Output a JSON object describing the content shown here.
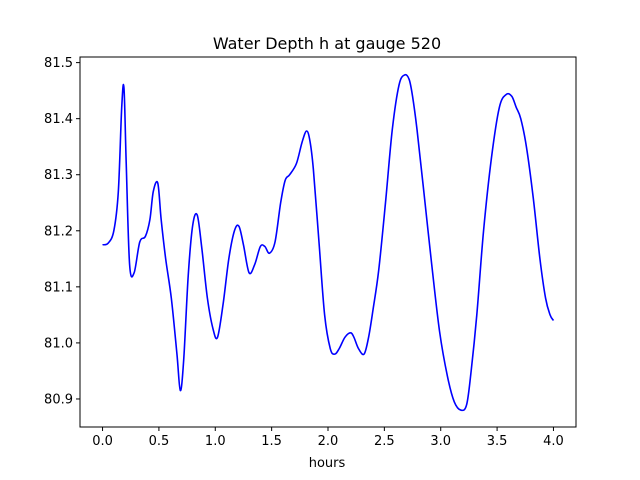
{
  "chart_data": {
    "type": "line",
    "title": "Water Depth h at gauge 520",
    "xlabel": "hours",
    "ylabel": "",
    "xlim": [
      -0.2,
      4.2
    ],
    "ylim": [
      80.85,
      81.51
    ],
    "xticks": [
      0.0,
      0.5,
      1.0,
      1.5,
      2.0,
      2.5,
      3.0,
      3.5,
      4.0
    ],
    "xtick_labels": [
      "0.0",
      "0.5",
      "1.0",
      "1.5",
      "2.0",
      "2.5",
      "3.0",
      "3.5",
      "4.0"
    ],
    "yticks": [
      80.9,
      81.0,
      81.1,
      81.2,
      81.3,
      81.4,
      81.5
    ],
    "ytick_labels": [
      "80.9",
      "81.0",
      "81.1",
      "81.2",
      "81.3",
      "81.4",
      "81.5"
    ],
    "grid": false,
    "series": [
      {
        "color": "#0000ff",
        "x": [
          0.0,
          0.05,
          0.1,
          0.14,
          0.17,
          0.19,
          0.21,
          0.24,
          0.28,
          0.33,
          0.38,
          0.42,
          0.45,
          0.49,
          0.52,
          0.56,
          0.61,
          0.66,
          0.69,
          0.72,
          0.76,
          0.8,
          0.84,
          0.88,
          0.93,
          0.98,
          1.02,
          1.07,
          1.12,
          1.17,
          1.21,
          1.25,
          1.3,
          1.35,
          1.4,
          1.44,
          1.48,
          1.53,
          1.58,
          1.62,
          1.66,
          1.72,
          1.77,
          1.81,
          1.84,
          1.87,
          1.92,
          1.97,
          2.02,
          2.06,
          2.1,
          2.15,
          2.2,
          2.23,
          2.27,
          2.32,
          2.36,
          2.4,
          2.45,
          2.51,
          2.57,
          2.63,
          2.68,
          2.72,
          2.75,
          2.79,
          2.85,
          2.92,
          2.99,
          3.06,
          3.12,
          3.18,
          3.23,
          3.27,
          3.32,
          3.38,
          3.45,
          3.52,
          3.58,
          3.63,
          3.67,
          3.71,
          3.76,
          3.82,
          3.88,
          3.93,
          3.97,
          4.0
        ],
        "y": [
          81.175,
          81.178,
          81.2,
          81.27,
          81.42,
          81.455,
          81.32,
          81.14,
          81.125,
          81.18,
          81.19,
          81.22,
          81.27,
          81.285,
          81.22,
          81.15,
          81.08,
          80.98,
          80.915,
          80.97,
          81.12,
          81.21,
          81.228,
          81.17,
          81.08,
          81.025,
          81.01,
          81.07,
          81.15,
          81.2,
          81.208,
          81.175,
          81.125,
          81.14,
          81.172,
          81.172,
          81.16,
          81.18,
          81.25,
          81.29,
          81.3,
          81.32,
          81.358,
          81.378,
          81.36,
          81.31,
          81.18,
          81.05,
          80.99,
          80.98,
          80.99,
          81.01,
          81.018,
          81.01,
          80.99,
          80.98,
          81.01,
          81.06,
          81.13,
          81.25,
          81.38,
          81.46,
          81.478,
          81.47,
          81.44,
          81.38,
          81.27,
          81.14,
          81.02,
          80.94,
          80.895,
          80.88,
          80.89,
          80.95,
          81.05,
          81.2,
          81.33,
          81.42,
          81.443,
          81.44,
          81.42,
          81.4,
          81.35,
          81.26,
          81.15,
          81.08,
          81.05,
          81.04
        ]
      }
    ]
  }
}
